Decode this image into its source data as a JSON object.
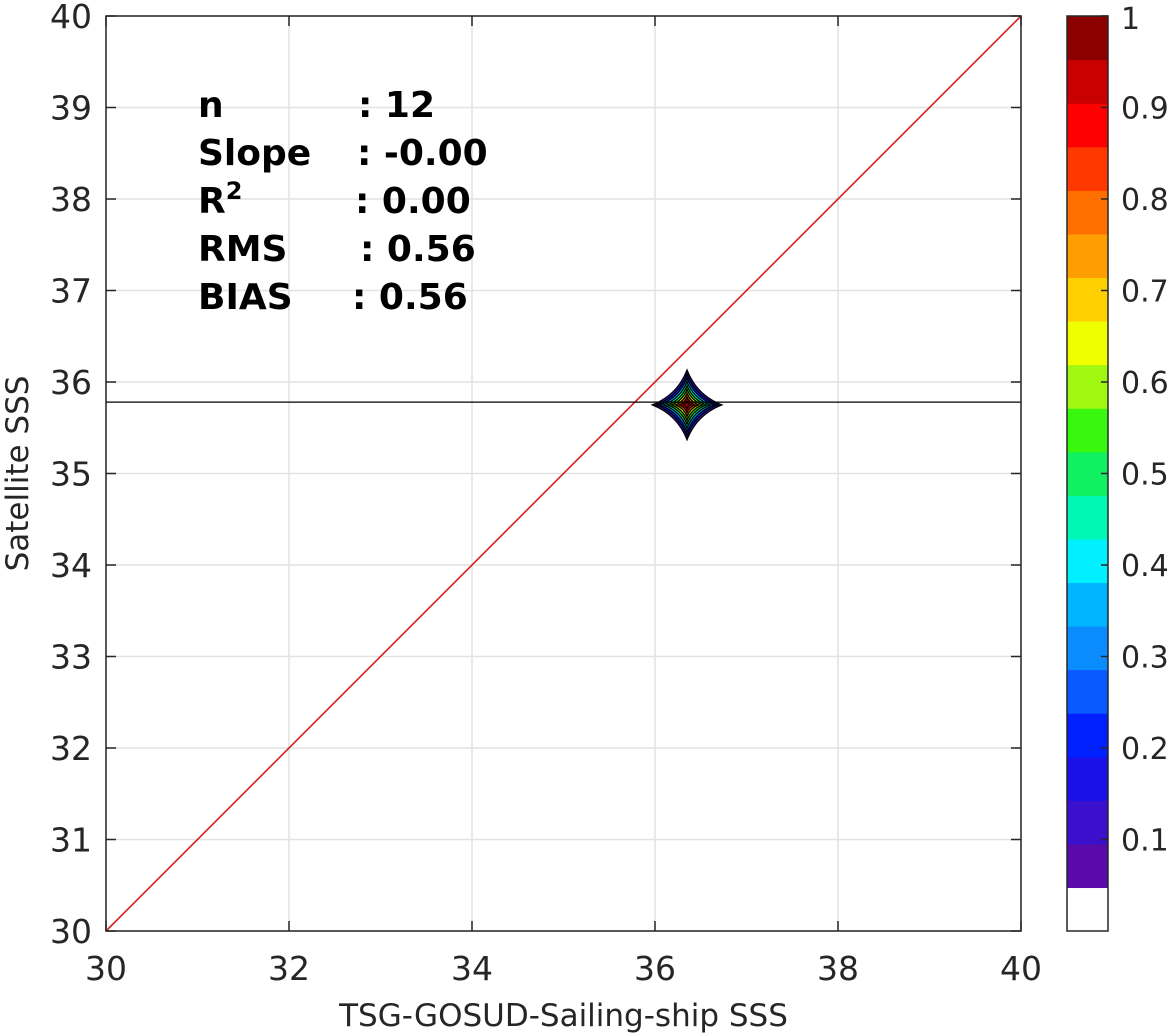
{
  "chart_data": {
    "type": "heatmap",
    "xlabel": "TSG-GOSUD-Sailing-ship SSS",
    "ylabel": "Satellite SSS",
    "xlim": [
      30,
      40
    ],
    "ylim": [
      30,
      40
    ],
    "x_ticks": [
      "30",
      "32",
      "34",
      "36",
      "38",
      "40"
    ],
    "y_ticks": [
      "30",
      "31",
      "32",
      "33",
      "34",
      "35",
      "36",
      "37",
      "38",
      "39",
      "40"
    ],
    "grid": true,
    "reference_line": {
      "type": "1:1",
      "from": [
        30,
        30
      ],
      "to": [
        40,
        40
      ],
      "color": "#d62020"
    },
    "mean_line": {
      "y": 35.78,
      "color": "#000000"
    },
    "density_peak": {
      "x": 36.35,
      "y": 35.75,
      "half_width": 0.38,
      "half_height": 0.38
    },
    "stats": [
      {
        "label": "n",
        "value": ": 12"
      },
      {
        "label": "Slope",
        "value": ": -0.00"
      },
      {
        "label": "R",
        "sup": "2",
        "value": ": 0.00"
      },
      {
        "label": "RMS",
        "value": ": 0.56"
      },
      {
        "label": "BIAS",
        "value": ": 0.56"
      }
    ],
    "colorbar": {
      "range": [
        0,
        1
      ],
      "ticks": [
        "0.1",
        "0.2",
        "0.3",
        "0.4",
        "0.5",
        "0.6",
        "0.7",
        "0.8",
        "0.9",
        "1"
      ],
      "levels": 20,
      "colors": [
        "#ffffff",
        "#5a0aa8",
        "#3a10cc",
        "#1a10e8",
        "#0020ff",
        "#0a58ff",
        "#0a8cff",
        "#00b4ff",
        "#00f0ff",
        "#00f8b4",
        "#10f060",
        "#38f810",
        "#a0f810",
        "#f0ff00",
        "#ffd000",
        "#ff9e00",
        "#ff6e00",
        "#ff3800",
        "#ff0000",
        "#c80000",
        "#8c0000"
      ]
    }
  }
}
